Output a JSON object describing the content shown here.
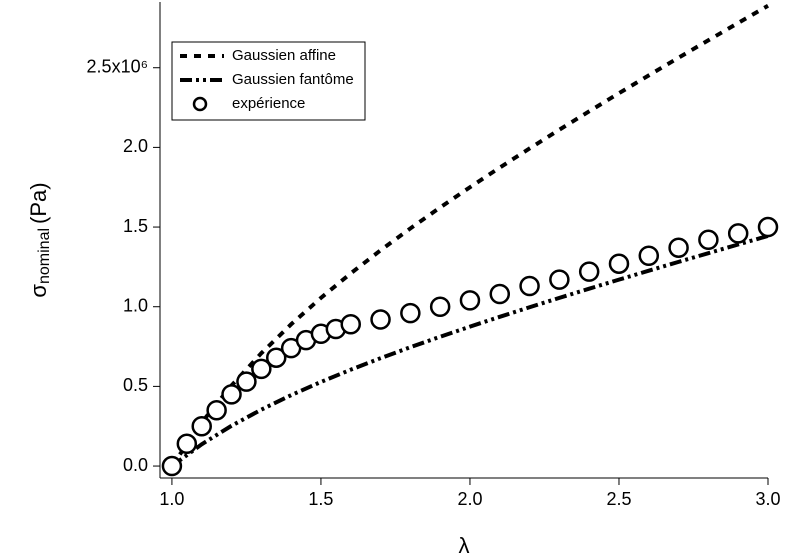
{
  "chart_data": {
    "type": "line",
    "xlabel": "λ",
    "ylabel": {
      "symbol": "σ",
      "subscript": "nominal",
      "unit": "(Pa)"
    },
    "xlim": [
      0.96,
      3.0
    ],
    "ylim": [
      -75000,
      2912500
    ],
    "xticks": [
      {
        "value": 1.0,
        "label": "1.0"
      },
      {
        "value": 1.5,
        "label": "1.5"
      },
      {
        "value": 2.0,
        "label": "2.0"
      },
      {
        "value": 2.5,
        "label": "2.5"
      },
      {
        "value": 3.0,
        "label": "3.0"
      }
    ],
    "yticks": [
      {
        "value": 0,
        "label": "0.0"
      },
      {
        "value": 500000,
        "label": "0.5"
      },
      {
        "value": 1000000,
        "label": "1.0"
      },
      {
        "value": 1500000,
        "label": "1.5"
      },
      {
        "value": 2000000,
        "label": "2.0"
      },
      {
        "value": 2500000,
        "label": "2.5x10⁶"
      }
    ],
    "legend": "upper left",
    "series": [
      {
        "name": "Gaussien affine",
        "style": "dash",
        "color": "#000000",
        "x": [
          1.0,
          1.1,
          1.2,
          1.3,
          1.4,
          1.5,
          1.6,
          1.7,
          1.8,
          1.9,
          2.0,
          2.1,
          2.2,
          2.3,
          2.4,
          2.5,
          2.6,
          2.7,
          2.8,
          2.9,
          3.0
        ],
        "values": [
          0,
          273600,
          505600,
          708300,
          889800,
          1055600,
          1209400,
          1354000,
          1491400,
          1623000,
          1750000,
          1873200,
          1993400,
          2111000,
          2226400,
          2340000,
          2452100,
          2562800,
          2672400,
          2781100,
          2888900
        ]
      },
      {
        "name": "Gaussien fantôme",
        "style": "dashdot",
        "color": "#000000",
        "x": [
          1.0,
          1.1,
          1.2,
          1.3,
          1.4,
          1.5,
          1.6,
          1.7,
          1.8,
          1.9,
          2.0,
          2.1,
          2.2,
          2.3,
          2.4,
          2.5,
          2.6,
          2.7,
          2.8,
          2.9,
          3.0
        ],
        "values": [
          0,
          136800,
          252800,
          354150,
          444900,
          527800,
          604700,
          677000,
          745700,
          811500,
          875000,
          936600,
          996700,
          1055500,
          1113200,
          1170000,
          1226050,
          1281400,
          1336200,
          1390550,
          1444450
        ]
      },
      {
        "name": "expérience",
        "style": "marker",
        "color": "#000000",
        "x": [
          1.0,
          1.05,
          1.1,
          1.15,
          1.2,
          1.25,
          1.3,
          1.35,
          1.4,
          1.45,
          1.5,
          1.55,
          1.6,
          1.7,
          1.8,
          1.9,
          2.0,
          2.1,
          2.2,
          2.3,
          2.4,
          2.5,
          2.6,
          2.7,
          2.8,
          2.9,
          3.0
        ],
        "values": [
          0,
          140000,
          250000,
          350000,
          450000,
          530000,
          610000,
          680000,
          740000,
          790000,
          830000,
          860000,
          890000,
          920000,
          960000,
          1000000,
          1040000,
          1080000,
          1130000,
          1170000,
          1220000,
          1270000,
          1320000,
          1370000,
          1420000,
          1460000,
          1500000
        ]
      }
    ]
  }
}
